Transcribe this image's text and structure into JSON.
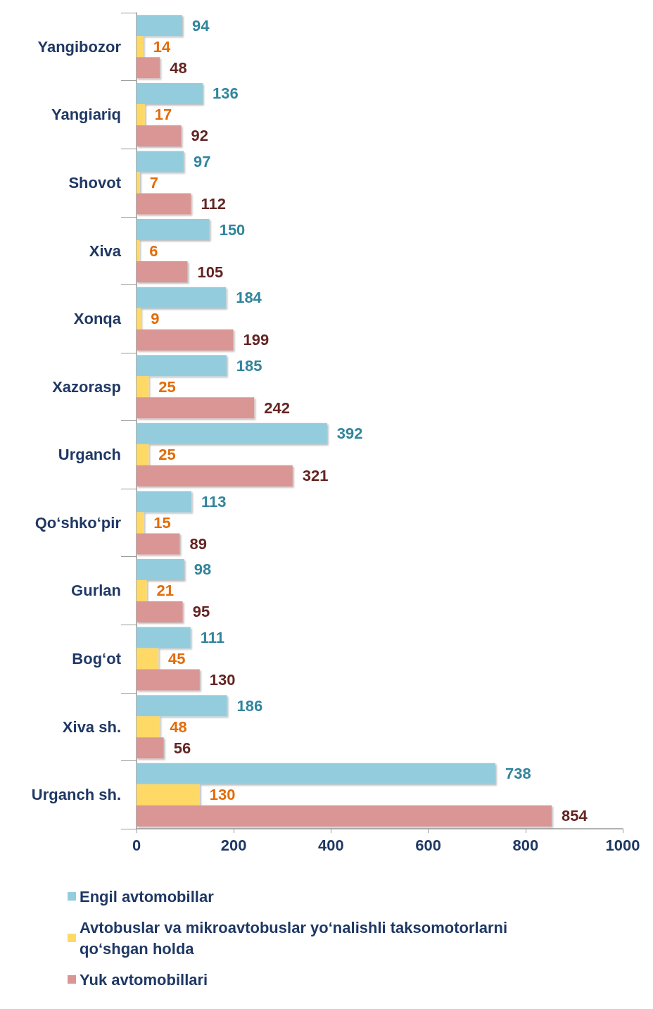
{
  "chart_data": {
    "type": "bar",
    "orientation": "horizontal",
    "categories": [
      "Yangibozor",
      "Yangiariq",
      "Shovot",
      "Xiva",
      "Xonqa",
      "Xazorasp",
      "Urganch",
      "Qo‘shko‘pir",
      "Gurlan",
      "Bog‘ot",
      "Xiva sh.",
      "Urganch sh."
    ],
    "series": [
      {
        "name": "Engil avtomobillar",
        "color": "#93cddd",
        "values": [
          94,
          136,
          97,
          150,
          184,
          185,
          392,
          113,
          98,
          111,
          186,
          738
        ]
      },
      {
        "name": "Avtobuslar va mikroavtobuslar yo‘nalishli taksomotorlarni qo‘shgan holda",
        "color": "#ffd966",
        "values": [
          14,
          17,
          7,
          6,
          9,
          25,
          25,
          15,
          21,
          45,
          48,
          130
        ]
      },
      {
        "name": "Yuk avtomobillari",
        "color": "#d99694",
        "values": [
          48,
          92,
          112,
          105,
          199,
          242,
          321,
          89,
          95,
          130,
          56,
          854
        ]
      }
    ],
    "xlim": [
      0,
      1000
    ],
    "xticks": [
      0,
      200,
      400,
      600,
      800,
      1000
    ],
    "data_labels": true,
    "grid": false,
    "legend": "bottom left"
  }
}
